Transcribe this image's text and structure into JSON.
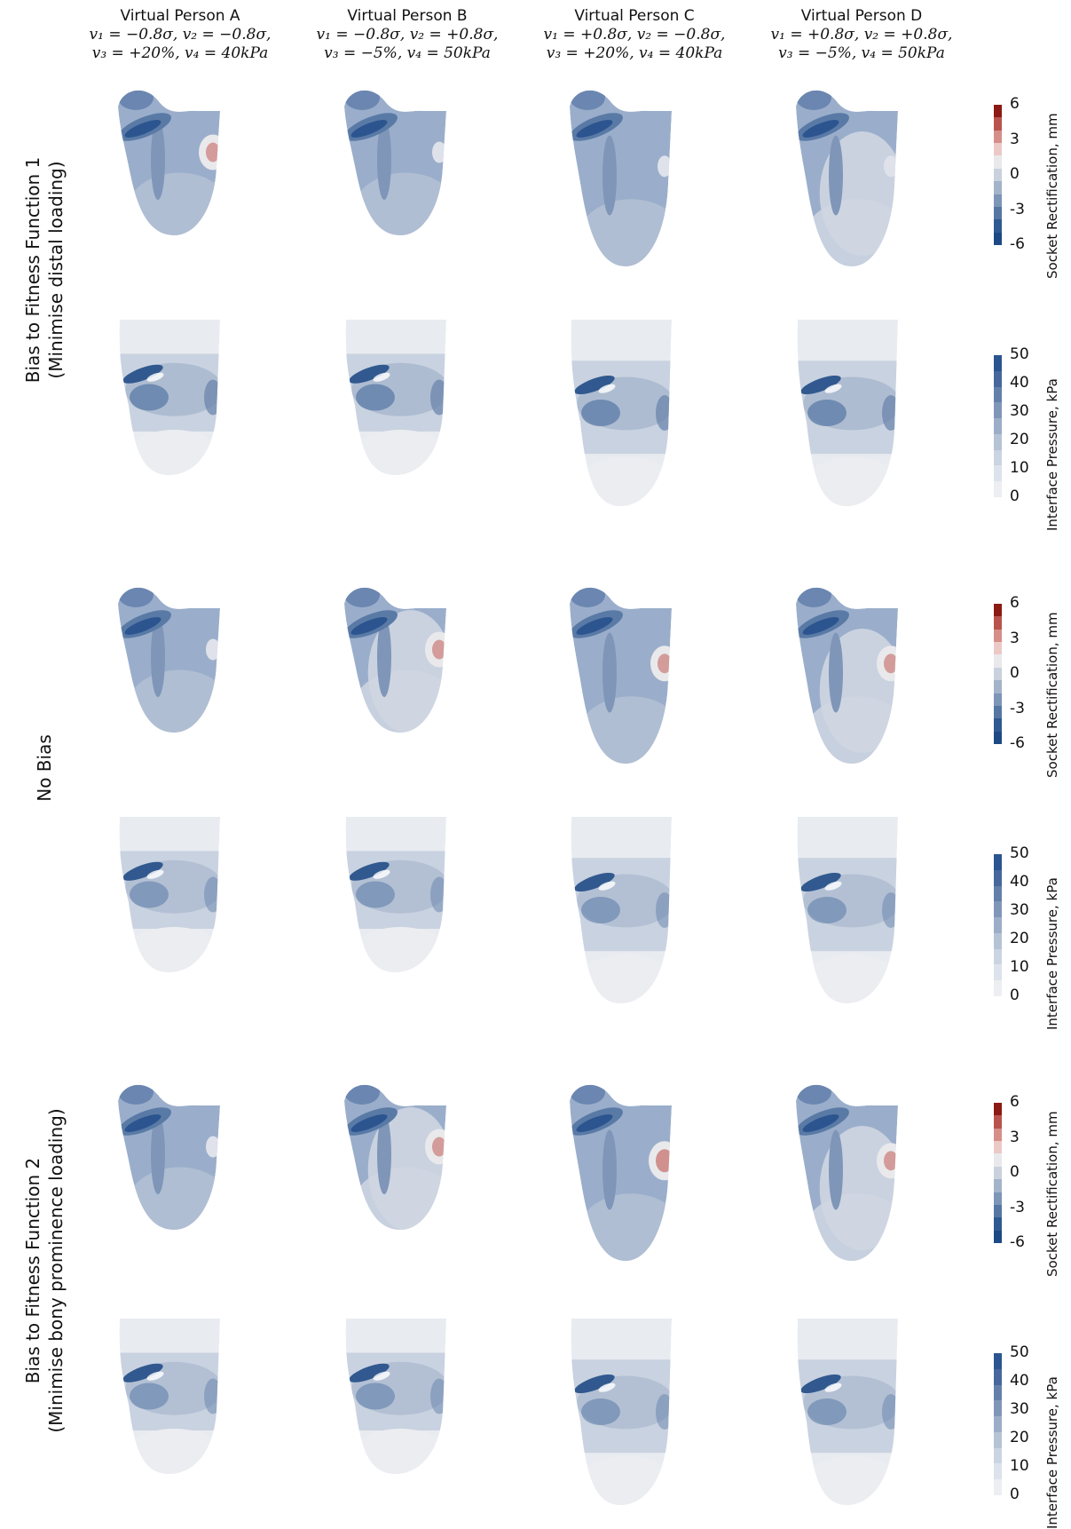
{
  "columns": [
    {
      "title": "Virtual Person A",
      "line1": "v₁ = −0.8σ, v₂ = −0.8σ,",
      "line2": "v₃ = +20%, v₄ = 40kPa"
    },
    {
      "title": "Virtual Person B",
      "line1": "v₁ = −0.8σ, v₂ = +0.8σ,",
      "line2": "v₃ = −5%, v₄ = 50kPa"
    },
    {
      "title": "Virtual Person C",
      "line1": "v₁ = +0.8σ, v₂ = −0.8σ,",
      "line2": "v₃ = +20%, v₄ = 40kPa"
    },
    {
      "title": "Virtual Person D",
      "line1": "v₁ = +0.8σ, v₂ = +0.8σ,",
      "line2": "v₃ = −5%, v₄ = 50kPa"
    }
  ],
  "groups": [
    {
      "line1": "Bias to Fitness Function 1",
      "line2": "(Minimise distal loading)"
    },
    {
      "line1": "No Bias",
      "line2": ""
    },
    {
      "line1": "Bias to Fitness Function 2",
      "line2": "(Minimise bony prominence loading)"
    }
  ],
  "colorbars": {
    "rectification": {
      "title": "Socket Rectification, mm",
      "ticks": [
        "6",
        "3",
        "0",
        "-3",
        "-6"
      ],
      "colors": [
        "#8b1a14",
        "#b8544d",
        "#d68e89",
        "#ecc9c6",
        "#e9e9ec",
        "#c9d1de",
        "#a3b3ca",
        "#7d95b6",
        "#5677a3",
        "#2f5a91",
        "#1d4a85"
      ]
    },
    "pressure": {
      "title": "Interface Pressure, kPa",
      "ticks": [
        "50",
        "40",
        "30",
        "20",
        "10",
        "0"
      ],
      "colors": [
        "#2b5590",
        "#46689c",
        "#6480aa",
        "#8096b9",
        "#9cadc8",
        "#b6c3d6",
        "#cbd4e2",
        "#dde3ec",
        "#eceef2"
      ]
    }
  },
  "palette": {
    "background_shape": "#e9eaee",
    "rect_base": "#9aaecb",
    "rect_dark": "#2c5590",
    "rect_red": "#c97a77",
    "press_base": "#e8ebf0",
    "press_mid": "#a9b8ce",
    "press_dark": "#31598f"
  }
}
